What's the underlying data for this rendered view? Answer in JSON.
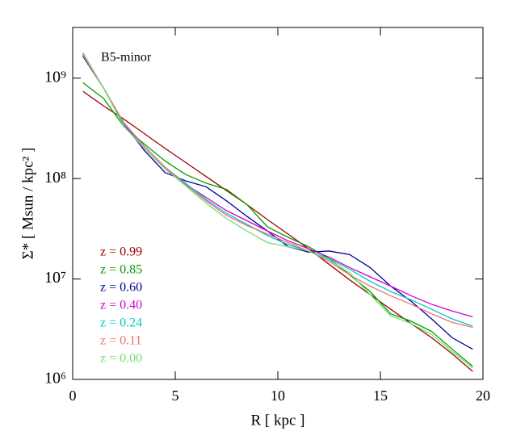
{
  "chart_data": {
    "type": "line",
    "log_y": true,
    "annotation": "B5-minor",
    "xlabel": "R [ kpc ]",
    "ylabel": "Σ* [ Msun / kpc² ]",
    "x": [
      0.5,
      1.5,
      2.5,
      3.5,
      4.5,
      5.5,
      6.5,
      7.5,
      8.5,
      9.5,
      10.5,
      11.5,
      12.5,
      13.5,
      14.5,
      15.5,
      16.5,
      17.5,
      18.5,
      19.5
    ],
    "xlim": [
      0,
      20
    ],
    "xticks": [
      0,
      5,
      10,
      15,
      20
    ],
    "ylim": [
      1000000,
      3200000000
    ],
    "yticks": [
      {
        "value": 1000000,
        "label": "10⁶"
      },
      {
        "value": 10000000,
        "label": "10⁷"
      },
      {
        "value": 100000000,
        "label": "10⁸"
      },
      {
        "value": 1000000000,
        "label": "10⁹"
      }
    ],
    "series": [
      {
        "name": "z = 0.99",
        "color": "#a00000",
        "values": [
          740000000,
          530000000,
          390000000,
          280000000,
          200000000,
          145000000,
          105000000,
          76000000,
          55000000,
          39000000,
          28000000,
          20000000,
          14000000,
          9800000,
          7000000,
          5000000,
          3600000,
          2600000,
          1800000,
          1200000
        ]
      },
      {
        "name": "z = 0.85",
        "color": "#00a000",
        "values": [
          900000000,
          630000000,
          330000000,
          220000000,
          150000000,
          110000000,
          90000000,
          78000000,
          55000000,
          33000000,
          26000000,
          21000000,
          16000000,
          11000000,
          7500000,
          4500000,
          3800000,
          3000000,
          2000000,
          1350000
        ]
      },
      {
        "name": "z = 0.60",
        "color": "#0000a0",
        "values": [
          1650000000,
          800000000,
          350000000,
          190000000,
          115000000,
          95000000,
          83000000,
          60000000,
          42000000,
          30000000,
          21000000,
          18500000,
          19000000,
          17500000,
          13000000,
          8500000,
          6000000,
          4000000,
          2600000,
          2000000
        ]
      },
      {
        "name": "z = 0.40",
        "color": "#d000d0",
        "values": [
          1750000000,
          800000000,
          340000000,
          200000000,
          125000000,
          88000000,
          65000000,
          48000000,
          38000000,
          30000000,
          24000000,
          20000000,
          16500000,
          13000000,
          10500000,
          8500000,
          6800000,
          5600000,
          4800000,
          4200000
        ]
      },
      {
        "name": "z = 0.24",
        "color": "#00c8c8",
        "values": [
          1700000000,
          800000000,
          350000000,
          210000000,
          130000000,
          90000000,
          62000000,
          45000000,
          35000000,
          27000000,
          22000000,
          19000000,
          16000000,
          12500000,
          9500000,
          7500000,
          6200000,
          5000000,
          4000000,
          3400000
        ]
      },
      {
        "name": "z = 0.11",
        "color": "#f07070",
        "values": [
          1700000000,
          800000000,
          360000000,
          210000000,
          130000000,
          87000000,
          60000000,
          43000000,
          34000000,
          28000000,
          23000000,
          19000000,
          15000000,
          11000000,
          8500000,
          6800000,
          5600000,
          4500000,
          3700000,
          3300000
        ]
      },
      {
        "name": "z = 0.00",
        "color": "#70e070",
        "values": [
          1800000000,
          800000000,
          330000000,
          200000000,
          125000000,
          85000000,
          57000000,
          40000000,
          30000000,
          23000000,
          21000000,
          19000000,
          15500000,
          11500000,
          7000000,
          4300000,
          3600000,
          2800000,
          1900000,
          1300000
        ]
      }
    ]
  }
}
